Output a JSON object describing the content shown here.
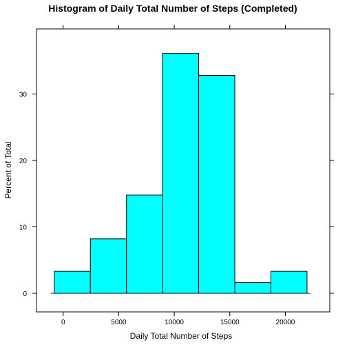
{
  "chart_data": {
    "type": "bar",
    "title": "Histogram of Daily Total Number of Steps (Completed)",
    "xlabel": "Daily Total Number of Steps",
    "ylabel": "Percent of Total",
    "xlim": [
      -2400,
      24000
    ],
    "ylim": [
      -2.8,
      39.8
    ],
    "x_ticks": [
      0,
      5000,
      10000,
      15000,
      20000
    ],
    "y_ticks": [
      0,
      10,
      20,
      30
    ],
    "bins": [
      {
        "start": -800,
        "end": 2450,
        "value": 3.3
      },
      {
        "start": 2450,
        "end": 5700,
        "value": 8.2
      },
      {
        "start": 5700,
        "end": 8950,
        "value": 14.8
      },
      {
        "start": 8950,
        "end": 12200,
        "value": 36.1
      },
      {
        "start": 12200,
        "end": 15450,
        "value": 32.8
      },
      {
        "start": 15450,
        "end": 18700,
        "value": 1.6
      },
      {
        "start": 18700,
        "end": 21950,
        "value": 3.3
      }
    ],
    "bar_color": "#00FFFF",
    "grid": false,
    "legend": "none"
  }
}
